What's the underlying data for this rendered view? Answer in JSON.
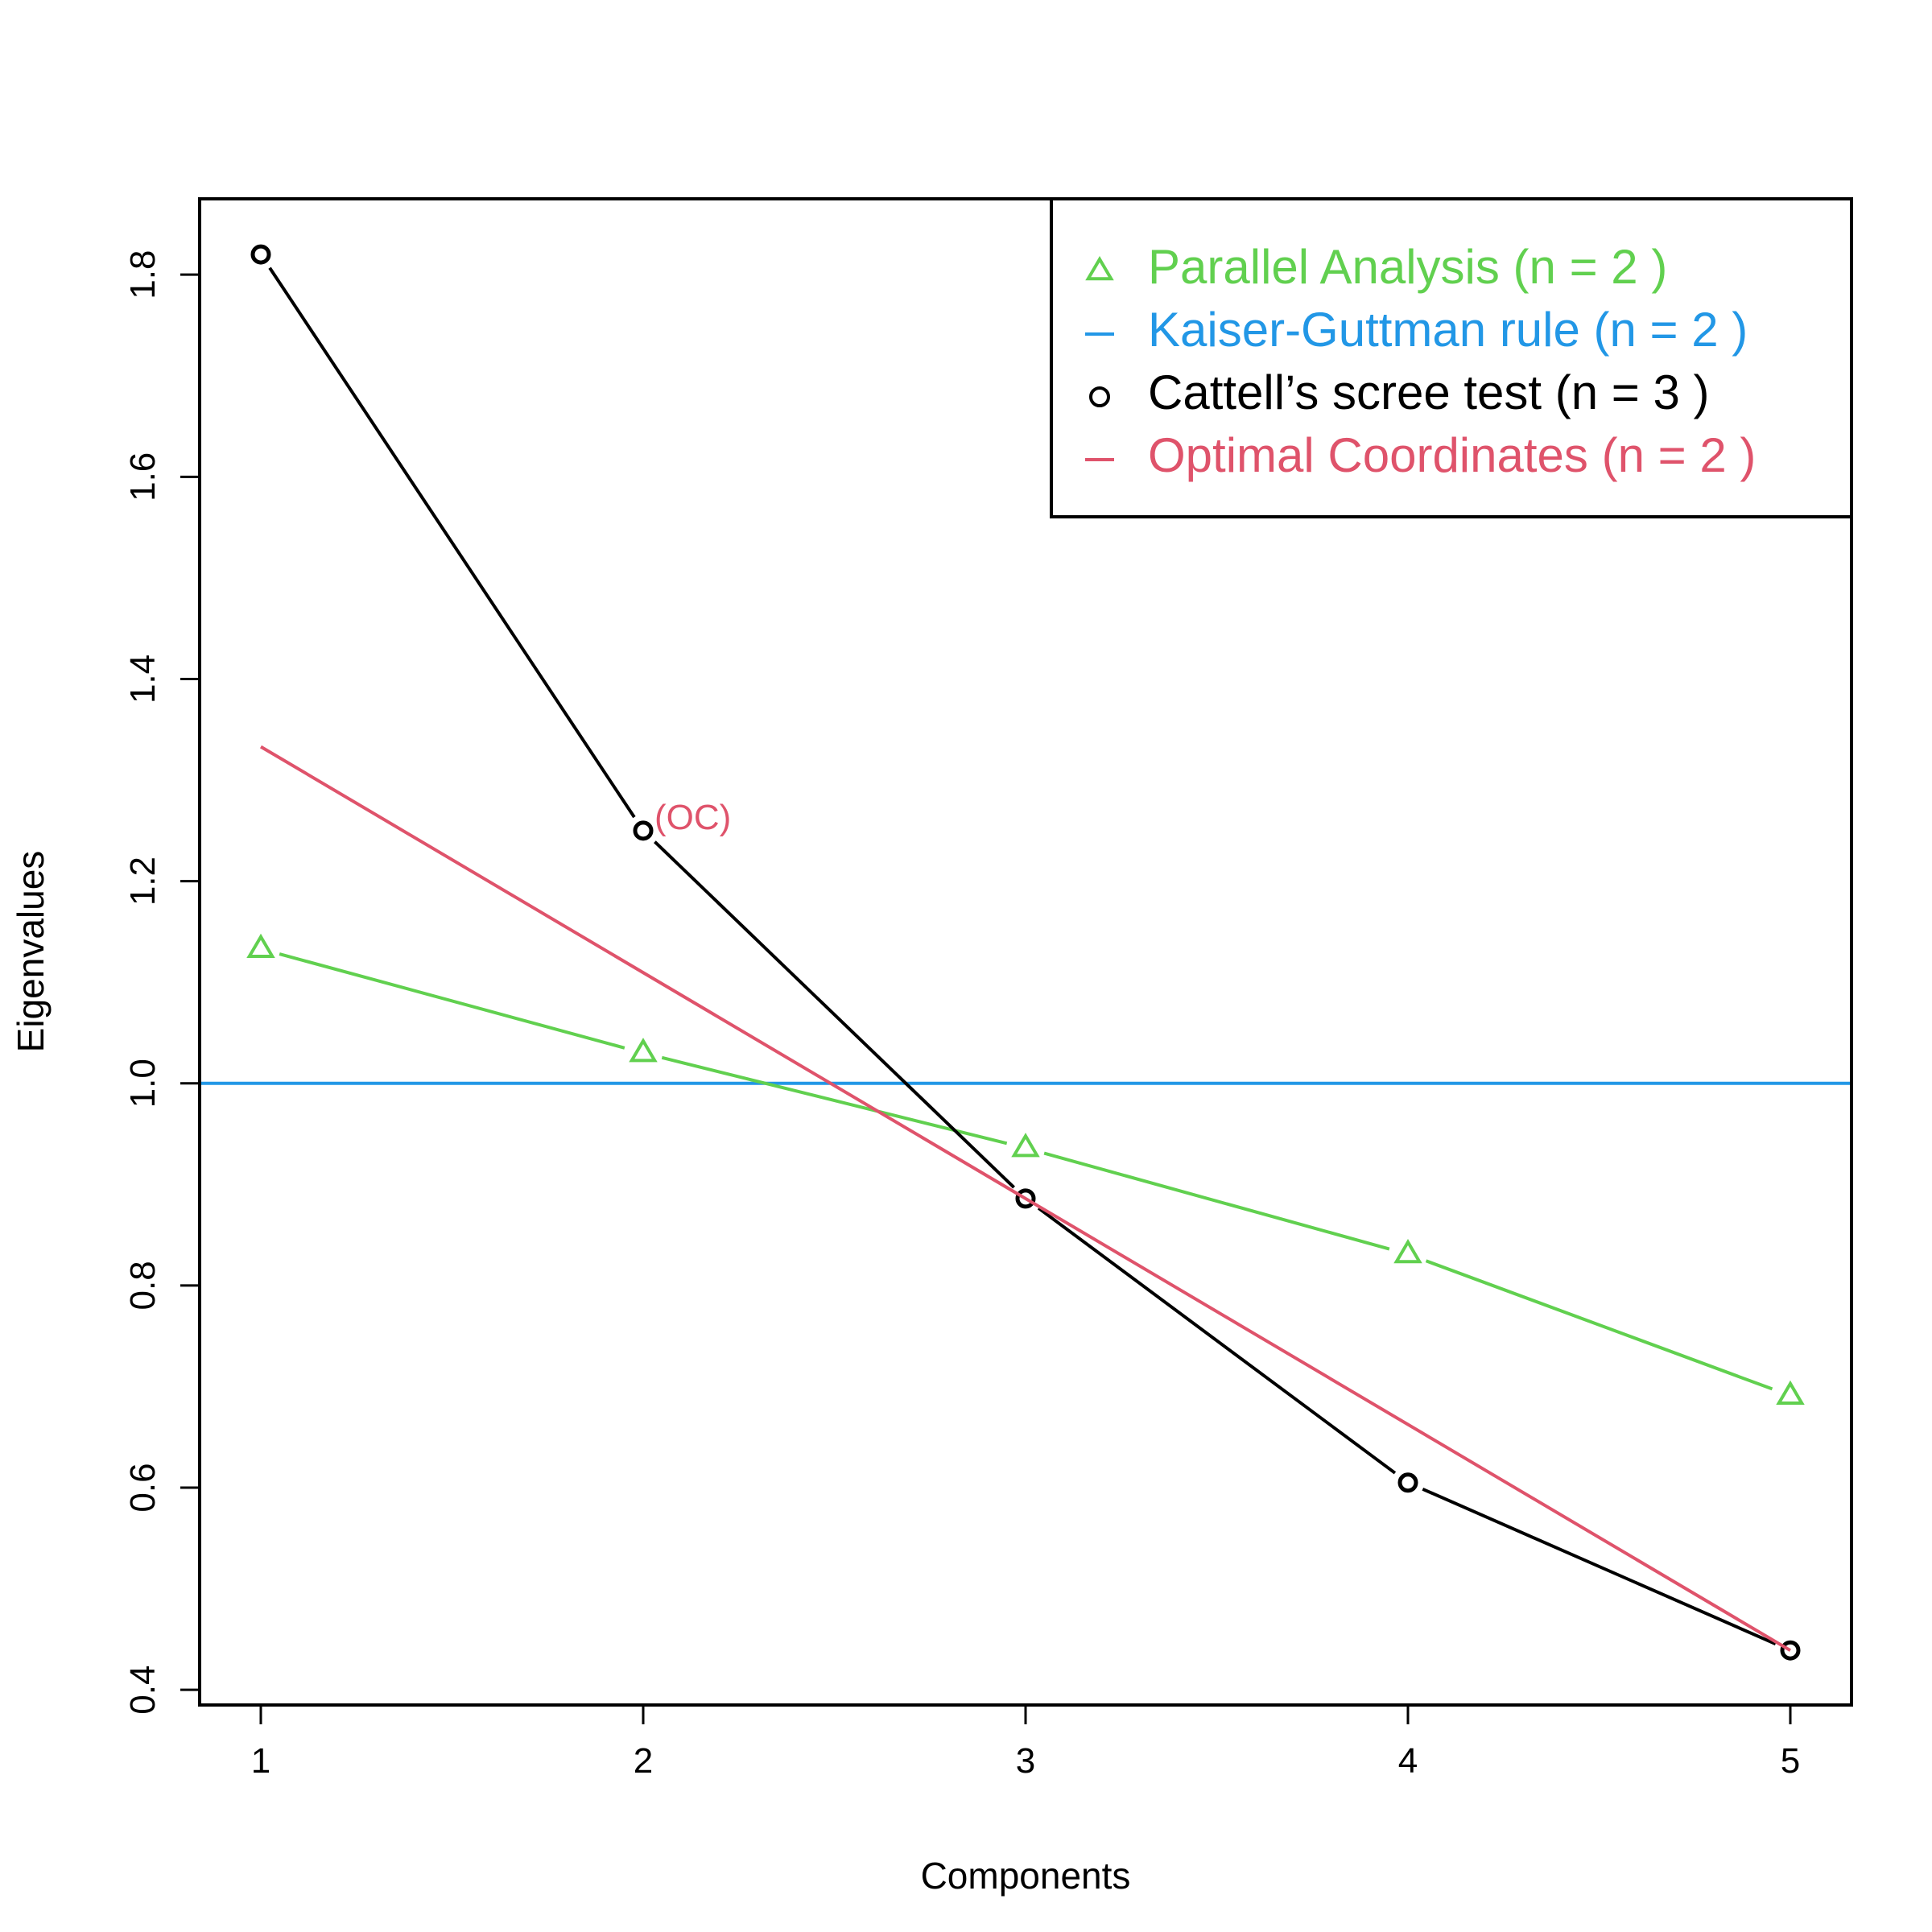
{
  "chart_data": {
    "type": "line",
    "xlabel": "Components",
    "ylabel": "Eigenvalues",
    "x": [
      1,
      2,
      3,
      4,
      5
    ],
    "xlim": [
      0.84,
      5.16
    ],
    "ylim": [
      0.385,
      1.875
    ],
    "x_ticks": [
      1,
      2,
      3,
      4,
      5
    ],
    "y_ticks": [
      0.4,
      0.6,
      0.8,
      1.0,
      1.2,
      1.4,
      1.6,
      1.8
    ],
    "y_tick_labels": [
      "0.4",
      "0.6",
      "0.8",
      "1.0",
      "1.2",
      "1.4",
      "1.6",
      "1.8"
    ],
    "grid": false,
    "legend_position": "top-right",
    "series": [
      {
        "name": "Parallel Analysis (n =  2 )",
        "role": "parallel",
        "color": "#61D04F",
        "marker": "triangle",
        "values": [
          1.133,
          1.03,
          0.936,
          0.831,
          0.691
        ]
      },
      {
        "name": "Kaiser-Guttman rule (n =  2 )",
        "role": "kaiser",
        "color": "#2297E6",
        "marker": "none",
        "hline": 1.0
      },
      {
        "name": "Cattell’s scree test (n =  3 )",
        "role": "eigen",
        "color": "#000000",
        "marker": "circle",
        "values": [
          1.82,
          1.25,
          0.886,
          0.605,
          0.439
        ]
      },
      {
        "name": "Optimal Coordinates (n =  2 )",
        "role": "oc",
        "color": "#DF536B",
        "marker": "none",
        "line_from": [
          1,
          1.333
        ],
        "line_to": [
          5,
          0.439
        ]
      }
    ],
    "annotations": [
      {
        "text": "(OC)",
        "x": 2,
        "y": 1.25,
        "color": "#DF536B"
      }
    ]
  }
}
